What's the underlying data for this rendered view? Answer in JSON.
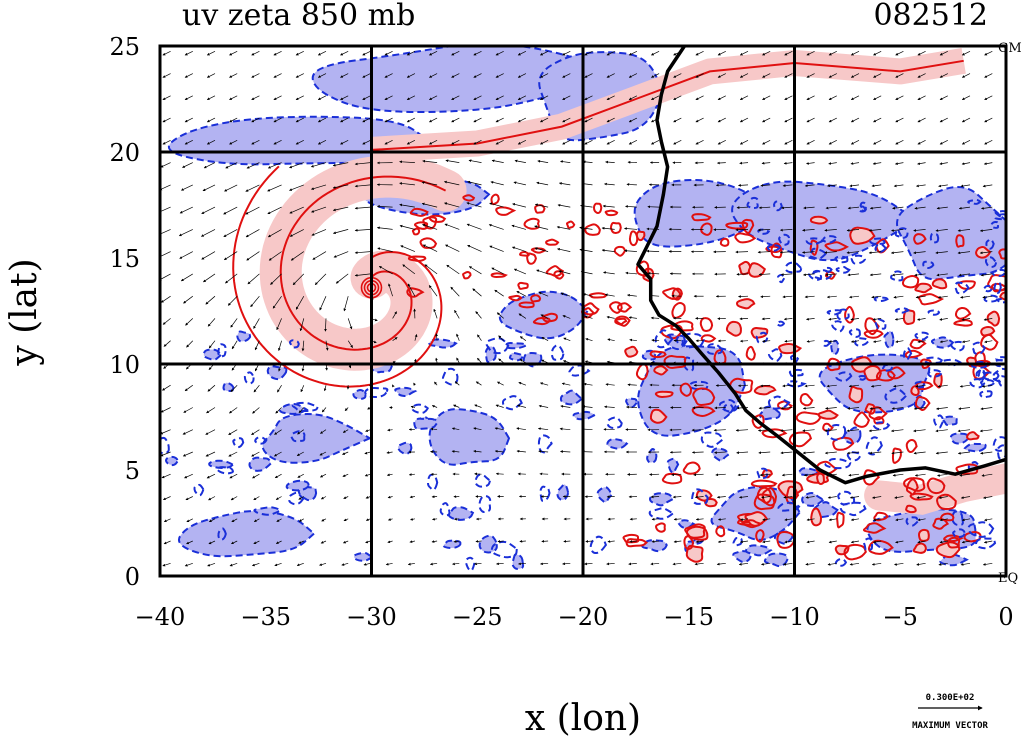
{
  "title_left": "uv zeta 850 mb",
  "title_right": "082512",
  "x_axis": {
    "label": "x (lon)",
    "ticks": [
      -40,
      -35,
      -30,
      -25,
      -20,
      -15,
      -10,
      -5,
      0
    ],
    "range": [
      -40,
      0
    ]
  },
  "y_axis": {
    "label": "y (lat)",
    "ticks": [
      0,
      5,
      10,
      15,
      20,
      25
    ],
    "range": [
      0,
      25
    ]
  },
  "grid_lines": {
    "lon": [
      -30,
      -20,
      -10
    ],
    "lat": [
      10,
      20
    ]
  },
  "corner_labels": {
    "top_right": "GM",
    "bottom_right": "EQ"
  },
  "reference_vector": {
    "value": "0.300E+02",
    "label": "MAXIMUM VECTOR"
  },
  "colors": {
    "positive_line": "#e01010",
    "positive_fill": "#f7c8c8",
    "negative_line": "#1a2fd8",
    "negative_fill": "#b3b3f2",
    "coast": "#000000"
  },
  "coastline": [
    [
      -15.2,
      25
    ],
    [
      -16.0,
      23.8
    ],
    [
      -16.3,
      22.7
    ],
    [
      -16.5,
      21.5
    ],
    [
      -16.3,
      20.5
    ],
    [
      -16.0,
      19.3
    ],
    [
      -16.2,
      18.0
    ],
    [
      -16.5,
      16.5
    ],
    [
      -17.0,
      15.5
    ],
    [
      -17.4,
      14.7
    ],
    [
      -16.8,
      14.0
    ],
    [
      -16.8,
      13.0
    ],
    [
      -16.4,
      12.3
    ],
    [
      -15.6,
      11.8
    ],
    [
      -15.0,
      11.2
    ],
    [
      -14.4,
      10.5
    ],
    [
      -13.6,
      9.6
    ],
    [
      -12.8,
      8.6
    ],
    [
      -12.3,
      7.8
    ],
    [
      -11.6,
      7.2
    ],
    [
      -10.8,
      6.6
    ],
    [
      -9.8,
      5.8
    ],
    [
      -8.8,
      5.0
    ],
    [
      -7.6,
      4.4
    ],
    [
      -6.6,
      4.7
    ],
    [
      -5.0,
      5.0
    ],
    [
      -3.8,
      5.1
    ],
    [
      -2.4,
      4.8
    ],
    [
      -1.0,
      5.2
    ],
    [
      0.0,
      5.5
    ]
  ],
  "vortex_center": {
    "lon": -30.0,
    "lat": 13.6
  }
}
